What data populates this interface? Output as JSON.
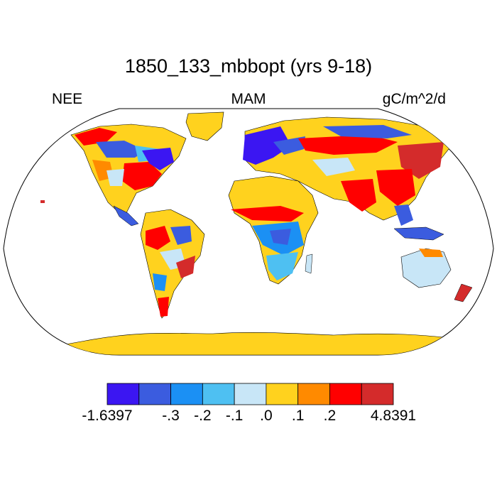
{
  "title": "1850_133_mbbopt (yrs 9-18)",
  "left_label": "NEE",
  "center_label": "MAM",
  "right_label": "gC/m^2/d",
  "colorbar": {
    "colors": [
      "#3b16f2",
      "#3b5cdf",
      "#1b90f4",
      "#4ec0f2",
      "#c8e6f7",
      "#ffd21e",
      "#ff8a00",
      "#ff0000",
      "#d42b2b"
    ],
    "tick_labels": [
      "-1.6397",
      "-.3",
      "-.2",
      "-.1",
      ".0",
      ".1",
      ".2",
      "4.8391"
    ]
  }
}
